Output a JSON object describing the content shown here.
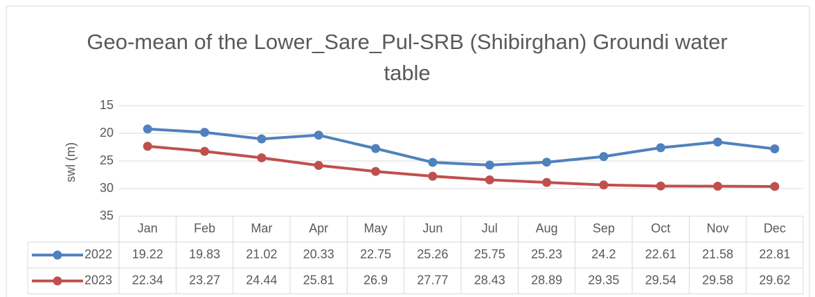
{
  "chart_data": {
    "type": "line",
    "title": "Geo-mean of the Lower_Sare_Pul-SRB (Shibirghan) Groundi water table",
    "y_label": "swl (m)",
    "categories": [
      "Jan",
      "Feb",
      "Mar",
      "Apr",
      "May",
      "Jun",
      "Jul",
      "Aug",
      "Sep",
      "Oct",
      "Nov",
      "Dec"
    ],
    "series": [
      {
        "name": "2022",
        "color": "#4f81bd",
        "values": [
          19.22,
          19.83,
          21.02,
          20.33,
          22.75,
          25.26,
          25.75,
          25.23,
          24.2,
          22.61,
          21.58,
          22.81
        ]
      },
      {
        "name": "2023",
        "color": "#c0504d",
        "values": [
          22.34,
          23.27,
          24.44,
          25.81,
          26.9,
          27.77,
          28.43,
          28.89,
          29.35,
          29.54,
          29.58,
          29.62
        ]
      }
    ],
    "ylim": [
      15,
      35
    ],
    "yticks": [
      15,
      20,
      25,
      30,
      35
    ],
    "y_reversed": true,
    "grid": true,
    "data_table": true
  }
}
